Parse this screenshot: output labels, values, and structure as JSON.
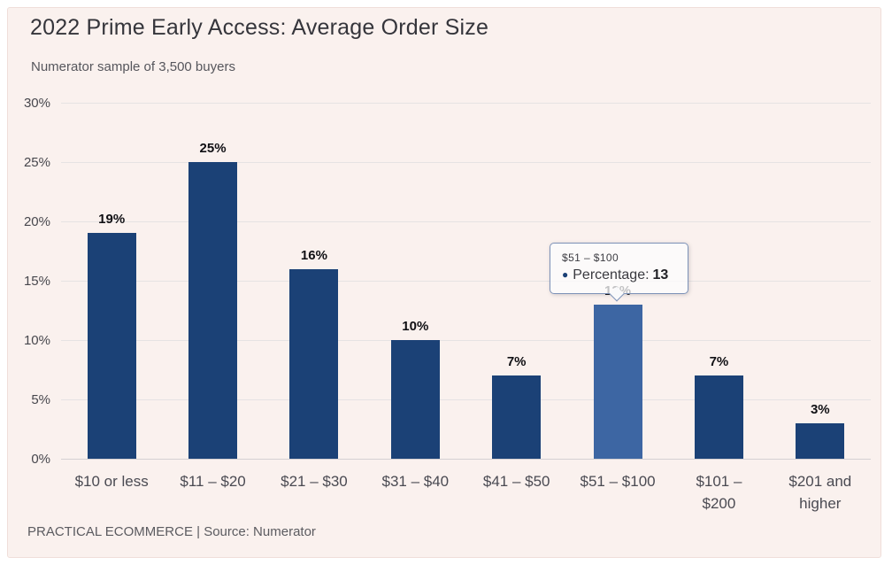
{
  "chart_data": {
    "type": "bar",
    "title": "2022 Prime Early Access: Average Order Size",
    "subtitle": "Numerator sample of 3,500 buyers",
    "categories": [
      "$10 or less",
      "$11 – $20",
      "$21 – $30",
      "$31 – $40",
      "$41 – $50",
      "$51 – $100",
      "$101 – $200",
      "$201 and higher"
    ],
    "tick_labels": [
      "$10 or less",
      "$11 – $20",
      "$21 – $30",
      "$31 – $40",
      "$41 – $50",
      "$51 – $100",
      "$101 –\n$200",
      "$201 and\nhigher"
    ],
    "series_name": "Percentage",
    "values": [
      19,
      25,
      16,
      10,
      7,
      13,
      7,
      3
    ],
    "value_suffix": "%",
    "ylim": [
      0,
      30
    ],
    "y_ticks": [
      0,
      5,
      10,
      15,
      20,
      25,
      30
    ],
    "y_tick_suffix": "%",
    "grid": true,
    "data_labels": true,
    "legend": "none",
    "highlighted_index": 5,
    "colors": {
      "bar": "#1b4176",
      "bar_highlight": "#3d66a3",
      "background": "#faf1ee",
      "grid": "#e6e2e3"
    }
  },
  "tooltip": {
    "category": "$51 – $100",
    "bullet": "●",
    "series_label": "Percentage:",
    "value": "13"
  },
  "footer": {
    "credit": "PRACTICAL ECOMMERCE | Source: Numerator"
  }
}
